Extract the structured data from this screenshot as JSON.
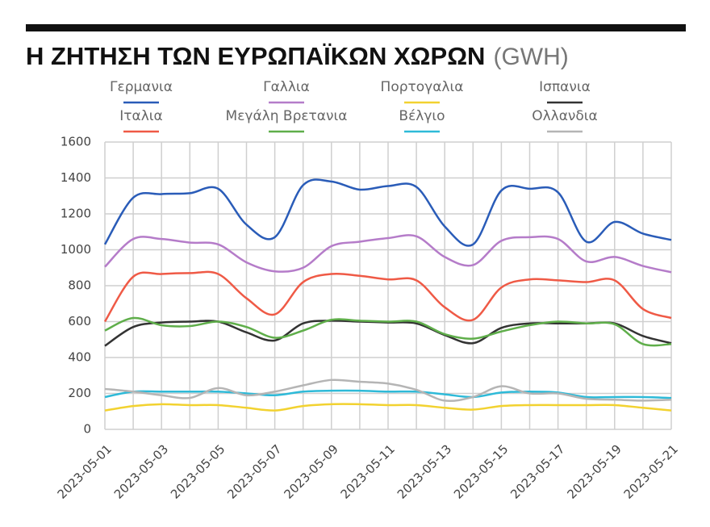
{
  "chart_data": {
    "type": "line",
    "title": "Η ΖΗΤΗΣΗ ΤΩΝ ΕΥΡΩΠΑΪΚΩΝ ΧΩΡΩΝ",
    "unit": "(GWH)",
    "categories": [
      "2023-05-01",
      null,
      "2023-05-03",
      null,
      "2023-05-05",
      null,
      "2023-05-07",
      null,
      "2023-05-09",
      null,
      "2023-05-11",
      null,
      "2023-05-13",
      null,
      "2023-05-15",
      null,
      "2023-05-17",
      null,
      "2023-05-19",
      null,
      "2023-05-21"
    ],
    "ylim": [
      0,
      1600
    ],
    "yticks": [
      0,
      200,
      400,
      600,
      800,
      1000,
      1200,
      1400,
      1600
    ],
    "grid": true,
    "series": [
      {
        "name": "Γερμανια",
        "color": "#2a5cb8",
        "values": [
          1030,
          1290,
          1310,
          1315,
          1340,
          1140,
          1070,
          1360,
          1380,
          1335,
          1355,
          1350,
          1130,
          1030,
          1330,
          1340,
          1320,
          1045,
          1155,
          1090,
          1055
        ]
      },
      {
        "name": "Γαλλια",
        "color": "#b57cc9",
        "values": [
          905,
          1060,
          1060,
          1040,
          1030,
          930,
          880,
          900,
          1020,
          1045,
          1065,
          1075,
          960,
          915,
          1050,
          1070,
          1060,
          935,
          960,
          910,
          875
        ]
      },
      {
        "name": "Πορτογαλια",
        "color": "#f2d230",
        "values": [
          105,
          130,
          140,
          135,
          135,
          120,
          105,
          130,
          140,
          140,
          135,
          135,
          120,
          110,
          130,
          135,
          135,
          135,
          135,
          120,
          105
        ]
      },
      {
        "name": "Ισπανια",
        "color": "#333333",
        "values": [
          465,
          570,
          595,
          600,
          600,
          540,
          495,
          590,
          605,
          600,
          595,
          590,
          525,
          480,
          565,
          590,
          590,
          590,
          590,
          520,
          480
        ]
      },
      {
        "name": "Ιταλια",
        "color": "#ef5a46",
        "values": [
          600,
          850,
          865,
          870,
          865,
          730,
          640,
          820,
          865,
          855,
          835,
          830,
          680,
          610,
          790,
          835,
          830,
          820,
          830,
          670,
          620
        ]
      },
      {
        "name": "Μεγάλη Βρετανια",
        "color": "#5fae4a",
        "values": [
          550,
          620,
          580,
          575,
          600,
          570,
          510,
          550,
          610,
          605,
          600,
          600,
          530,
          505,
          545,
          580,
          600,
          590,
          585,
          475,
          475
        ]
      },
      {
        "name": "Βέλγιο",
        "color": "#2ebad8",
        "values": [
          180,
          210,
          210,
          210,
          210,
          200,
          190,
          210,
          215,
          215,
          210,
          210,
          195,
          180,
          205,
          210,
          205,
          180,
          180,
          180,
          175
        ]
      },
      {
        "name": "Ολλανδια",
        "color": "#b5b5b5",
        "values": [
          225,
          210,
          190,
          175,
          230,
          190,
          210,
          245,
          275,
          265,
          255,
          220,
          160,
          180,
          240,
          200,
          200,
          170,
          165,
          160,
          165
        ]
      }
    ]
  }
}
